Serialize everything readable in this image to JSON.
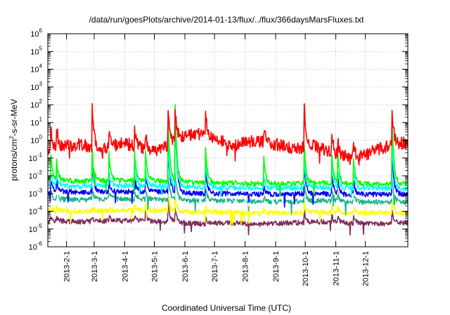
{
  "chart_data": {
    "type": "line",
    "title": "/data/run/goesPlots/archive/2014-01-13/flux/../flux/366daysMarsFluxes.txt",
    "xlabel": "Coordinated Universal Time (UTC)",
    "ylabel": {
      "part1": "protons/cm",
      "sup": "2",
      "part2": "-s-sr-MeV"
    },
    "yscale": "log",
    "ylim_exponents": [
      -6,
      6
    ],
    "y_ticks": [
      {
        "base": "10",
        "exp": "-6"
      },
      {
        "base": "10",
        "exp": "-5"
      },
      {
        "base": "10",
        "exp": "-4"
      },
      {
        "base": "10",
        "exp": "-3"
      },
      {
        "base": "10",
        "exp": "-2"
      },
      {
        "base": "10",
        "exp": "-1"
      },
      {
        "base": "10",
        "exp": "0"
      },
      {
        "base": "10",
        "exp": "1"
      },
      {
        "base": "10",
        "exp": "2"
      },
      {
        "base": "10",
        "exp": "3"
      },
      {
        "base": "10",
        "exp": "4"
      },
      {
        "base": "10",
        "exp": "5"
      },
      {
        "base": "10",
        "exp": "6"
      }
    ],
    "xlim": [
      "2013-01-13",
      "2014-01-13"
    ],
    "x_ticks": [
      {
        "date": "2013-02-01",
        "label": "2013-2-1"
      },
      {
        "date": "2013-03-01",
        "label": "2013-3-1"
      },
      {
        "date": "2013-04-01",
        "label": "2013-4-1"
      },
      {
        "date": "2013-05-01",
        "label": "2013-5-1"
      },
      {
        "date": "2013-06-01",
        "label": "2013-6-1"
      },
      {
        "date": "2013-07-01",
        "label": "2013-7-1"
      },
      {
        "date": "2013-08-01",
        "label": "2013-8-1"
      },
      {
        "date": "2013-09-01",
        "label": "2013-9-1"
      },
      {
        "date": "2013-10-01",
        "label": "2013-10-1"
      },
      {
        "date": "2013-11-01",
        "label": "2013-11-1"
      },
      {
        "date": "2013-12-01",
        "label": "2013-12-1"
      }
    ],
    "grid": true,
    "legend": "none",
    "event_dates": [
      "2013-01-16",
      "2013-01-22",
      "2013-02-27",
      "2013-03-16",
      "2013-04-11",
      "2013-04-22",
      "2013-05-15",
      "2013-05-22",
      "2013-06-22",
      "2013-08-20",
      "2013-09-30",
      "2013-10-28",
      "2013-11-03",
      "2013-11-19",
      "2013-12-28"
    ],
    "series": [
      {
        "color": "#7f2a5a",
        "levels": [
          [
            "2013-01-13",
            3e-05
          ],
          [
            "2013-02-15",
            2.5e-05
          ],
          [
            "2013-03-15",
            3e-05
          ],
          [
            "2013-04-15",
            2.8e-05
          ],
          [
            "2013-05-15",
            2.5e-05
          ],
          [
            "2013-06-15",
            2e-05
          ],
          [
            "2013-07-15",
            2.2e-05
          ],
          [
            "2013-08-15",
            1.8e-05
          ],
          [
            "2013-09-15",
            2.2e-05
          ],
          [
            "2013-10-15",
            2.5e-05
          ],
          [
            "2013-11-15",
            2.2e-05
          ],
          [
            "2013-12-15",
            2e-05
          ],
          [
            "2014-01-13",
            2.2e-05
          ]
        ],
        "peaks": [
          0.25,
          0.2,
          0.15,
          0.2,
          0.25,
          0.5,
          1.2,
          0.8,
          0.3,
          0.2,
          0.6,
          0.4,
          0.3,
          0.3,
          0.8
        ]
      },
      {
        "color": "#ffff00",
        "levels": [
          [
            "2013-01-13",
            0.00011
          ],
          [
            "2013-02-15",
            0.0001
          ],
          [
            "2013-03-15",
            0.00011
          ],
          [
            "2013-04-15",
            0.00011
          ],
          [
            "2013-05-15",
            0.00011
          ],
          [
            "2013-06-15",
            9e-05
          ],
          [
            "2013-07-15",
            9e-05
          ],
          [
            "2013-08-15",
            8e-05
          ],
          [
            "2013-09-15",
            8e-05
          ],
          [
            "2013-10-15",
            9e-05
          ],
          [
            "2013-11-15",
            8e-05
          ],
          [
            "2013-12-15",
            8e-05
          ],
          [
            "2014-01-13",
            8e-05
          ]
        ],
        "peaks": [
          0.25,
          0.2,
          0.15,
          0.2,
          0.3,
          0.4,
          0.9,
          0.8,
          0.3,
          0.2,
          0.6,
          0.4,
          0.3,
          0.3,
          0.8
        ]
      },
      {
        "color": "#19b48c",
        "levels": [
          [
            "2013-01-13",
            0.0005
          ],
          [
            "2013-02-15",
            0.00045
          ],
          [
            "2013-03-15",
            0.0005
          ],
          [
            "2013-04-15",
            0.0005
          ],
          [
            "2013-05-15",
            0.00045
          ],
          [
            "2013-06-15",
            0.0004
          ],
          [
            "2013-07-15",
            0.0004
          ],
          [
            "2013-08-15",
            0.00035
          ],
          [
            "2013-09-15",
            0.00035
          ],
          [
            "2013-10-15",
            0.0004
          ],
          [
            "2013-11-15",
            0.00035
          ],
          [
            "2013-12-15",
            0.00035
          ],
          [
            "2014-01-13",
            0.00035
          ]
        ],
        "peaks": [
          0.4,
          0.3,
          0.6,
          0.3,
          0.4,
          0.5,
          1.6,
          1.8,
          0.8,
          0.3,
          1.0,
          0.6,
          0.4,
          0.4,
          1.5
        ]
      },
      {
        "color": "#ffffff",
        "levels": [
          [
            "2013-01-13",
            0.0009
          ],
          [
            "2013-02-15",
            0.0008
          ],
          [
            "2013-03-15",
            0.0009
          ],
          [
            "2013-04-15",
            0.0009
          ],
          [
            "2013-05-15",
            0.0008
          ],
          [
            "2013-06-15",
            0.0007
          ],
          [
            "2013-07-15",
            0.0007
          ],
          [
            "2013-08-15",
            0.0006
          ],
          [
            "2013-09-15",
            0.0006
          ],
          [
            "2013-10-15",
            0.0007
          ],
          [
            "2013-11-15",
            0.0006
          ],
          [
            "2013-12-15",
            0.0006
          ],
          [
            "2014-01-13",
            0.0006
          ]
        ],
        "peaks": [
          0.5,
          0.5,
          1.0,
          0.5,
          0.7,
          0.6,
          2.0,
          2.2,
          1.0,
          0.4,
          1.2,
          0.8,
          0.6,
          0.6,
          1.8
        ]
      },
      {
        "color": "#0000ff",
        "levels": [
          [
            "2013-01-13",
            0.0014
          ],
          [
            "2013-02-15",
            0.0012
          ],
          [
            "2013-03-15",
            0.0013
          ],
          [
            "2013-04-15",
            0.0013
          ],
          [
            "2013-05-15",
            0.0012
          ],
          [
            "2013-06-15",
            0.001
          ],
          [
            "2013-07-15",
            0.001
          ],
          [
            "2013-08-15",
            0.0009
          ],
          [
            "2013-09-15",
            0.0009
          ],
          [
            "2013-10-15",
            0.001
          ],
          [
            "2013-11-15",
            0.0009
          ],
          [
            "2013-12-15",
            0.0009
          ],
          [
            "2014-01-13",
            0.0009
          ]
        ],
        "peaks": [
          0.6,
          0.6,
          1.5,
          0.6,
          1.0,
          0.8,
          2.6,
          4.5,
          1.5,
          0.5,
          1.6,
          1.1,
          0.8,
          0.8,
          2.5
        ]
      },
      {
        "color": "#00ffff",
        "levels": [
          [
            "2013-01-13",
            0.003
          ],
          [
            "2013-02-15",
            0.0025
          ],
          [
            "2013-03-15",
            0.0028
          ],
          [
            "2013-04-15",
            0.0028
          ],
          [
            "2013-05-15",
            0.0025
          ],
          [
            "2013-06-15",
            0.0022
          ],
          [
            "2013-07-15",
            0.0022
          ],
          [
            "2013-08-15",
            0.002
          ],
          [
            "2013-09-15",
            0.002
          ],
          [
            "2013-10-15",
            0.0022
          ],
          [
            "2013-11-15",
            0.002
          ],
          [
            "2013-12-15",
            0.002
          ],
          [
            "2014-01-13",
            0.002
          ]
        ],
        "peaks": [
          0.7,
          0.7,
          1.5,
          0.7,
          1.1,
          0.9,
          2.4,
          4.3,
          1.5,
          0.6,
          1.6,
          1.2,
          0.9,
          0.9,
          2.6
        ]
      },
      {
        "color": "#00ff00",
        "levels": [
          [
            "2013-01-13",
            0.006
          ],
          [
            "2013-02-15",
            0.005
          ],
          [
            "2013-03-15",
            0.0055
          ],
          [
            "2013-04-15",
            0.0055
          ],
          [
            "2013-05-15",
            0.005
          ],
          [
            "2013-06-15",
            0.004
          ],
          [
            "2013-07-15",
            0.004
          ],
          [
            "2013-08-15",
            0.0035
          ],
          [
            "2013-09-15",
            0.0035
          ],
          [
            "2013-10-15",
            0.004
          ],
          [
            "2013-11-15",
            0.0035
          ],
          [
            "2013-12-15",
            0.0035
          ],
          [
            "2014-01-13",
            0.0035
          ]
        ],
        "peaks": [
          1.5,
          1.0,
          1.8,
          1.5,
          1.6,
          1.7,
          3.5,
          4.3,
          2.0,
          1.5,
          2.2,
          1.6,
          1.5,
          1.4,
          3.8
        ]
      },
      {
        "color": "#ff0000",
        "levels": [
          [
            "2013-01-13",
            0.3
          ],
          [
            "2013-01-25",
            0.4
          ],
          [
            "2013-02-15",
            0.6
          ],
          [
            "2013-03-05",
            0.3
          ],
          [
            "2013-04-01",
            0.7
          ],
          [
            "2013-05-01",
            0.2
          ],
          [
            "2013-06-01",
            2.0
          ],
          [
            "2013-06-20",
            2.5
          ],
          [
            "2013-07-20",
            0.5
          ],
          [
            "2013-08-10",
            1.0
          ],
          [
            "2013-09-01",
            0.6
          ],
          [
            "2013-09-20",
            0.3
          ],
          [
            "2013-10-10",
            0.5
          ],
          [
            "2013-11-01",
            0.15
          ],
          [
            "2013-11-25",
            0.12
          ],
          [
            "2013-12-10",
            0.25
          ],
          [
            "2013-12-25",
            0.5
          ],
          [
            "2014-01-13",
            0.8
          ]
        ],
        "peaks": [
          1.5,
          1.2,
          2.6,
          1.0,
          1.2,
          1.0,
          2.0,
          1.7,
          1.0,
          0.6,
          2.5,
          1.0,
          0.8,
          0.7,
          2.2
        ]
      }
    ]
  }
}
